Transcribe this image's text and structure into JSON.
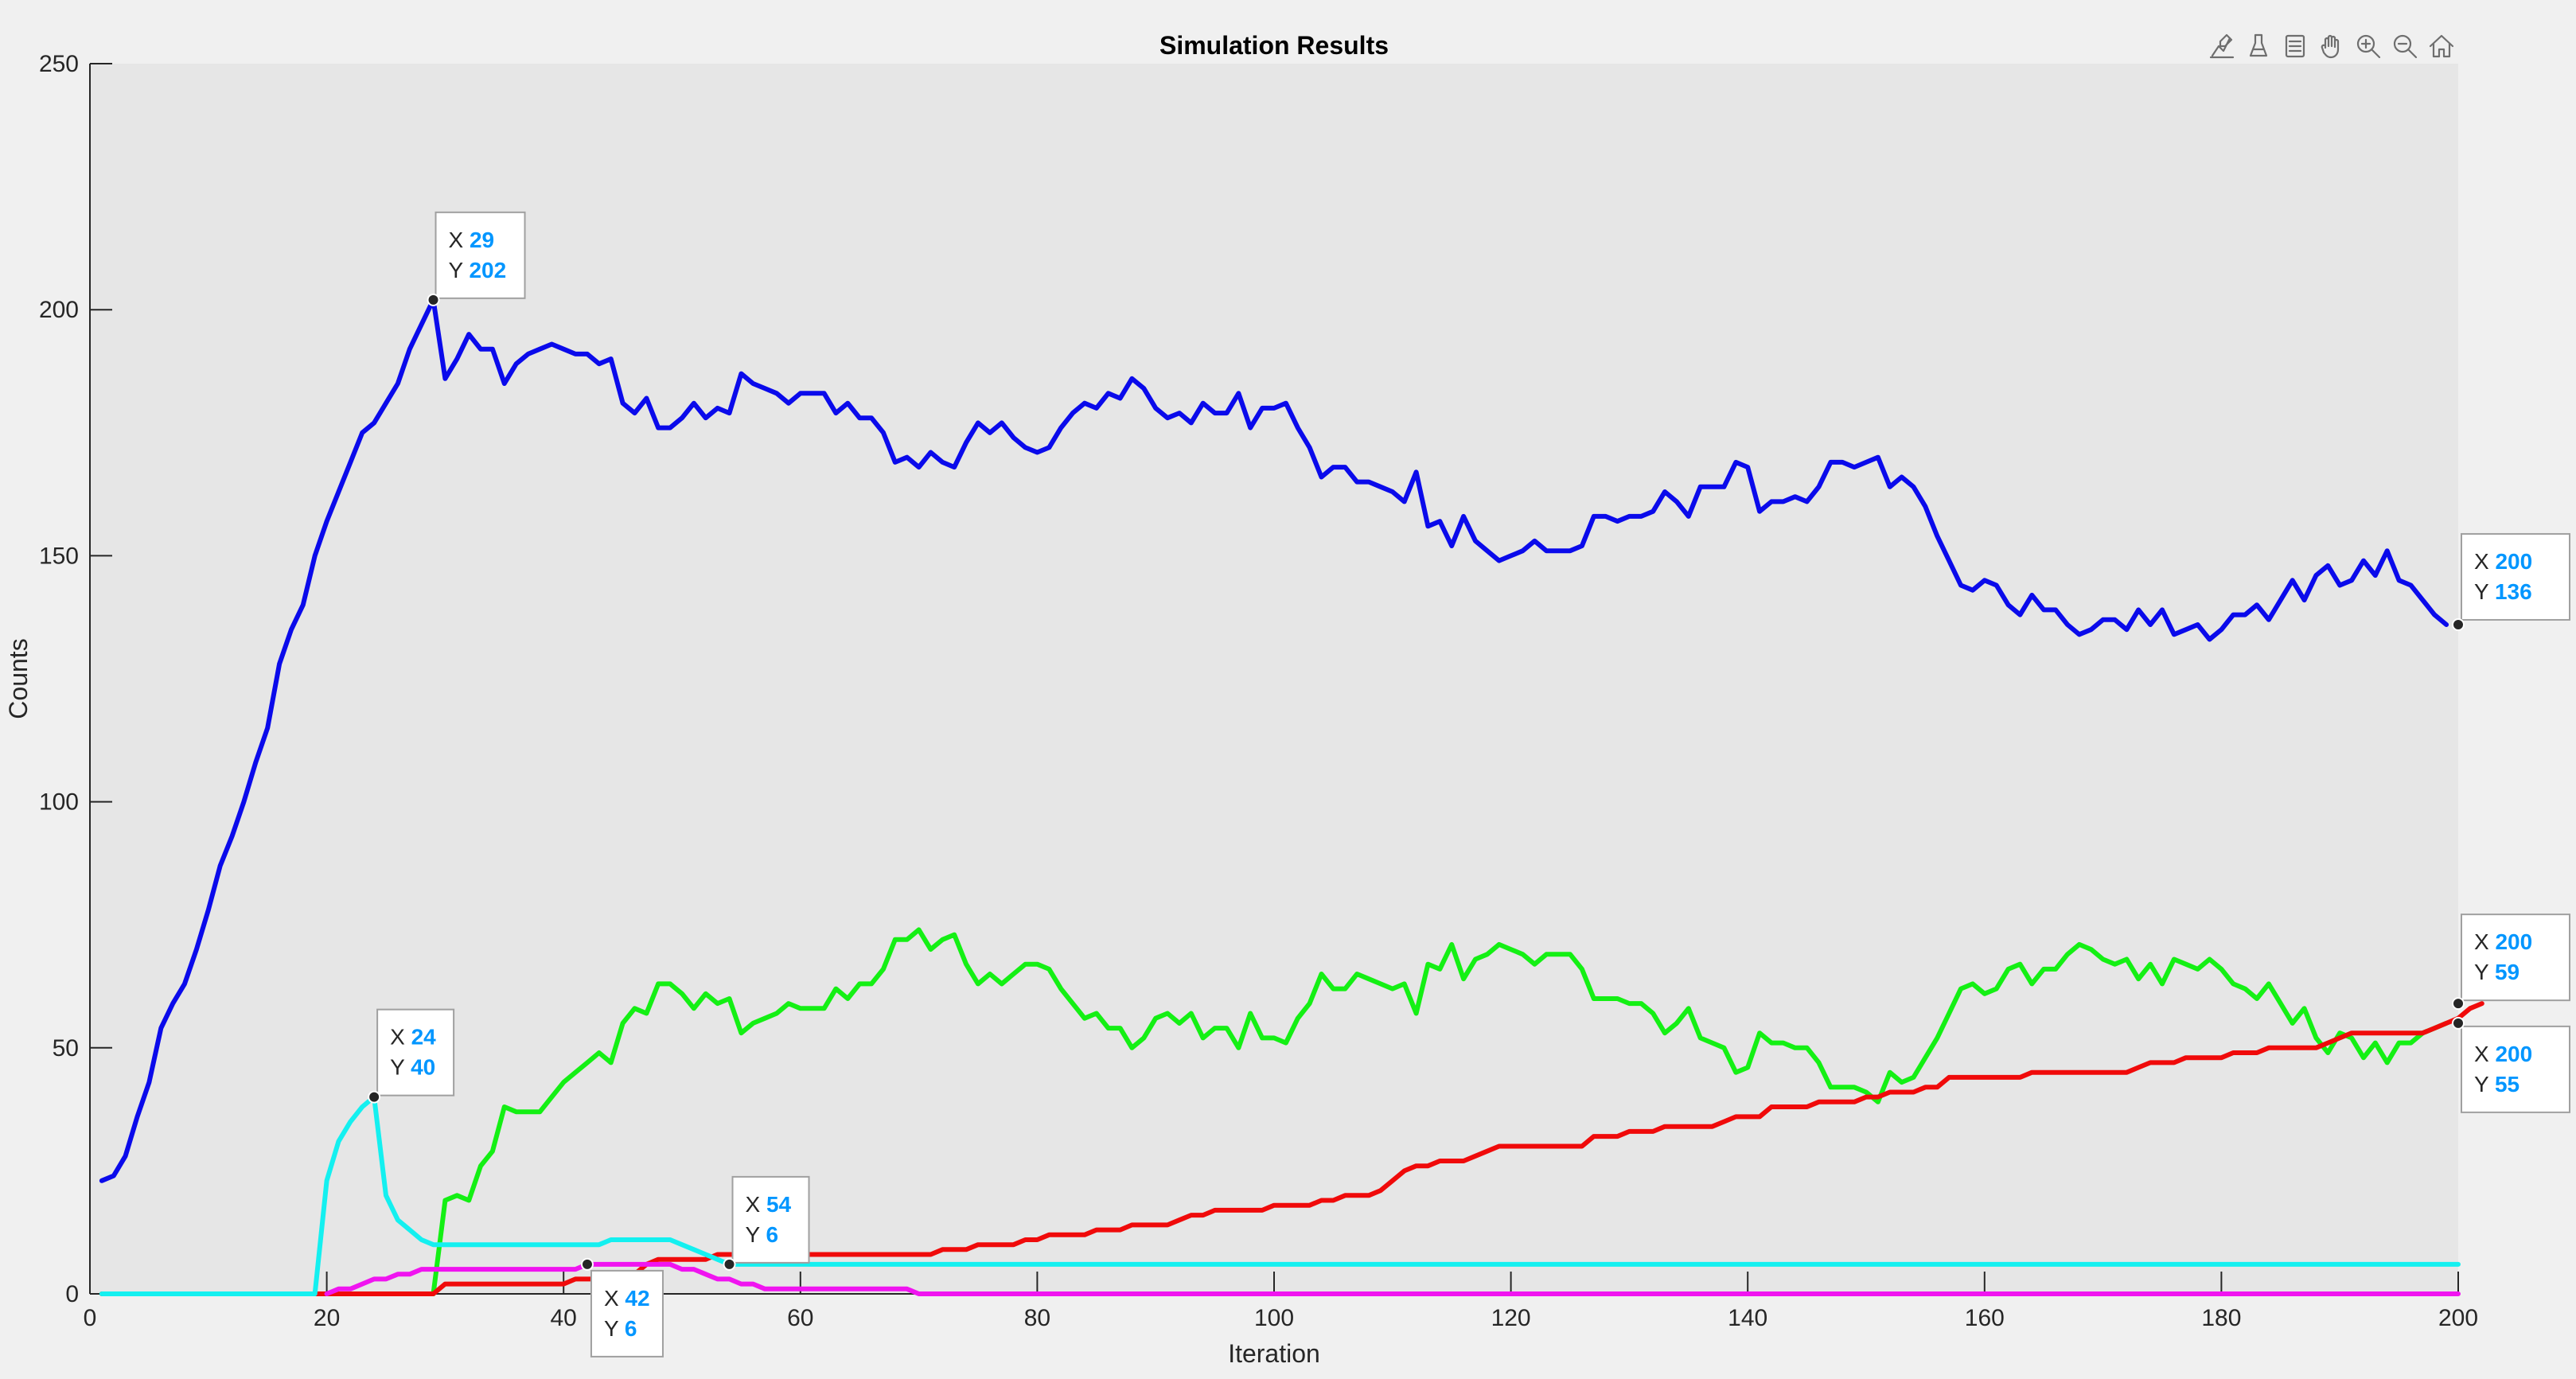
{
  "toolbar": {
    "icons": [
      "data-tips-icon",
      "brush-icon",
      "legend-icon",
      "pan-hand-icon",
      "zoom-in-icon",
      "zoom-out-icon",
      "home-icon"
    ]
  },
  "colors": {
    "figure_bg": "#f0f0f0",
    "axes_bg": "#e6e6e6",
    "axis": "#262626",
    "datatip_value": "#0096ff"
  },
  "chart_data": {
    "type": "line",
    "title": "Simulation Results",
    "xlabel": "Iteration",
    "ylabel": "Counts",
    "xlim": [
      0,
      200
    ],
    "ylim": [
      0,
      250
    ],
    "xticks": [
      "0",
      "20",
      "40",
      "60",
      "80",
      "100",
      "120",
      "140",
      "160",
      "180",
      "200"
    ],
    "yticks": [
      "0",
      "50",
      "100",
      "150",
      "200",
      "250"
    ],
    "grid": false,
    "series": [
      {
        "color": "#0a0aeb",
        "x_start": 1,
        "values": [
          23,
          24,
          28,
          36,
          43,
          54,
          59,
          63,
          70,
          78,
          87,
          93,
          100,
          108,
          115,
          128,
          135,
          140,
          150,
          157,
          163,
          169,
          175,
          177,
          181,
          185,
          192,
          197,
          202,
          186,
          190,
          195,
          192,
          192,
          185,
          189,
          191,
          192,
          193,
          192,
          191,
          191,
          189,
          190,
          181,
          179,
          182,
          176,
          176,
          178,
          181,
          178,
          180,
          179,
          187,
          185,
          184,
          183,
          181,
          183,
          183,
          183,
          179,
          181,
          178,
          178,
          175,
          169,
          170,
          168,
          171,
          169,
          168,
          173,
          177,
          175,
          177,
          174,
          172,
          171,
          172,
          176,
          179,
          181,
          180,
          183,
          182,
          186,
          184,
          180,
          178,
          179,
          177,
          181,
          179,
          179,
          183,
          176,
          180,
          180,
          181,
          176,
          172,
          166,
          168,
          168,
          165,
          165,
          164,
          163,
          161,
          167,
          156,
          157,
          152,
          158,
          153,
          151,
          149,
          150,
          151,
          153,
          151,
          151,
          151,
          152,
          158,
          158,
          157,
          158,
          158,
          159,
          163,
          161,
          158,
          164,
          164,
          164,
          169,
          168,
          159,
          161,
          161,
          162,
          161,
          164,
          169,
          169,
          168,
          169,
          170,
          164,
          166,
          164,
          160,
          154,
          149,
          144,
          143,
          145,
          144,
          140,
          138,
          142,
          139,
          139,
          136,
          134,
          135,
          137,
          137,
          135,
          139,
          136,
          139,
          134,
          135,
          136,
          133,
          135,
          138,
          138,
          140,
          137,
          141,
          145,
          141,
          146,
          148,
          144,
          145,
          149,
          146,
          151,
          145,
          144,
          141,
          138,
          136
        ]
      },
      {
        "color": "#14f014",
        "x_start": 1,
        "values": [
          0,
          0,
          0,
          0,
          0,
          0,
          0,
          0,
          0,
          0,
          0,
          0,
          0,
          0,
          0,
          0,
          0,
          0,
          0,
          0,
          0,
          0,
          0,
          0,
          0,
          0,
          0,
          0,
          0,
          19,
          20,
          19,
          26,
          29,
          38,
          37,
          37,
          37,
          40,
          43,
          45,
          47,
          49,
          47,
          55,
          58,
          57,
          63,
          63,
          61,
          58,
          61,
          59,
          60,
          53,
          55,
          56,
          57,
          59,
          58,
          58,
          58,
          62,
          60,
          63,
          63,
          66,
          72,
          72,
          74,
          70,
          72,
          73,
          67,
          63,
          65,
          63,
          65,
          67,
          67,
          66,
          62,
          59,
          56,
          57,
          54,
          54,
          50,
          52,
          56,
          57,
          55,
          57,
          52,
          54,
          54,
          50,
          57,
          52,
          52,
          51,
          56,
          59,
          65,
          62,
          62,
          65,
          64,
          63,
          62,
          63,
          57,
          67,
          66,
          71,
          64,
          68,
          69,
          71,
          70,
          69,
          67,
          69,
          69,
          69,
          66,
          60,
          60,
          60,
          59,
          59,
          57,
          53,
          55,
          58,
          52,
          51,
          50,
          45,
          46,
          53,
          51,
          51,
          50,
          50,
          47,
          42,
          42,
          42,
          41,
          39,
          45,
          43,
          44,
          48,
          52,
          57,
          62,
          63,
          61,
          62,
          66,
          67,
          63,
          66,
          66,
          69,
          71,
          70,
          68,
          67,
          68,
          64,
          67,
          63,
          68,
          67,
          66,
          68,
          66,
          63,
          62,
          60,
          63,
          59,
          55,
          58,
          52,
          49,
          53,
          52,
          48,
          51,
          47,
          51,
          51,
          53,
          54,
          55
        ]
      },
      {
        "color": "#f00a0a",
        "x_start": 1,
        "values": [
          0,
          0,
          0,
          0,
          0,
          0,
          0,
          0,
          0,
          0,
          0,
          0,
          0,
          0,
          0,
          0,
          0,
          0,
          0,
          0,
          0,
          0,
          0,
          0,
          0,
          0,
          0,
          0,
          0,
          2,
          2,
          2,
          2,
          2,
          2,
          2,
          2,
          2,
          2,
          2,
          3,
          3,
          3,
          3,
          3,
          4,
          6,
          7,
          7,
          7,
          7,
          7,
          8,
          8,
          8,
          8,
          8,
          8,
          8,
          8,
          8,
          8,
          8,
          8,
          8,
          8,
          8,
          8,
          8,
          8,
          8,
          9,
          9,
          9,
          10,
          10,
          10,
          10,
          11,
          11,
          12,
          12,
          12,
          12,
          13,
          13,
          13,
          14,
          14,
          14,
          14,
          15,
          16,
          16,
          17,
          17,
          17,
          17,
          17,
          18,
          18,
          18,
          18,
          19,
          19,
          20,
          20,
          20,
          21,
          23,
          25,
          26,
          26,
          27,
          27,
          27,
          28,
          29,
          30,
          30,
          30,
          30,
          30,
          30,
          30,
          30,
          32,
          32,
          32,
          33,
          33,
          33,
          34,
          34,
          34,
          34,
          34,
          35,
          36,
          36,
          36,
          38,
          38,
          38,
          38,
          39,
          39,
          39,
          39,
          40,
          40,
          41,
          41,
          41,
          42,
          42,
          44,
          44,
          44,
          44,
          44,
          44,
          44,
          45,
          45,
          45,
          45,
          45,
          45,
          45,
          45,
          45,
          46,
          47,
          47,
          47,
          48,
          48,
          48,
          48,
          49,
          49,
          49,
          50,
          50,
          50,
          50,
          50,
          51,
          52,
          53,
          53,
          53,
          53,
          53,
          53,
          53,
          54,
          55,
          56,
          58,
          59
        ]
      },
      {
        "color": "#14f0f0",
        "x_start": 1,
        "values": [
          0,
          0,
          0,
          0,
          0,
          0,
          0,
          0,
          0,
          0,
          0,
          0,
          0,
          0,
          0,
          0,
          0,
          0,
          0,
          23,
          31,
          35,
          38,
          40,
          20,
          15,
          13,
          11,
          10,
          10,
          10,
          10,
          10,
          10,
          10,
          10,
          10,
          10,
          10,
          10,
          10,
          10,
          10,
          11,
          11,
          11,
          11,
          11,
          11,
          10,
          9,
          8,
          7,
          6,
          6,
          6,
          6,
          6,
          6,
          6,
          6,
          6,
          6,
          6,
          6,
          6,
          6,
          6,
          6,
          6,
          6,
          6,
          6,
          6,
          6,
          6,
          6,
          6,
          6,
          6,
          6,
          6,
          6,
          6,
          6,
          6,
          6,
          6,
          6,
          6,
          6,
          6,
          6,
          6,
          6,
          6,
          6,
          6,
          6,
          6,
          6,
          6,
          6,
          6,
          6,
          6,
          6,
          6,
          6,
          6,
          6,
          6,
          6,
          6,
          6,
          6,
          6,
          6,
          6,
          6,
          6,
          6,
          6,
          6,
          6,
          6,
          6,
          6,
          6,
          6,
          6,
          6,
          6,
          6,
          6,
          6,
          6,
          6,
          6,
          6,
          6,
          6,
          6,
          6,
          6,
          6,
          6,
          6,
          6,
          6,
          6,
          6,
          6,
          6,
          6,
          6,
          6,
          6,
          6,
          6,
          6,
          6,
          6,
          6,
          6,
          6,
          6,
          6,
          6,
          6,
          6,
          6,
          6,
          6,
          6,
          6,
          6,
          6,
          6,
          6,
          6,
          6,
          6,
          6,
          6,
          6,
          6,
          6,
          6,
          6,
          6,
          6,
          6,
          6,
          6,
          6,
          6,
          6,
          6,
          6
        ]
      },
      {
        "color": "#f014f0",
        "x_start": 20,
        "values": [
          0,
          1,
          1,
          2,
          3,
          3,
          4,
          4,
          5,
          5,
          5,
          5,
          5,
          5,
          5,
          5,
          5,
          5,
          5,
          5,
          5,
          5,
          6,
          6,
          6,
          6,
          6,
          6,
          6,
          6,
          5,
          5,
          4,
          3,
          3,
          2,
          2,
          1,
          1,
          1,
          1,
          1,
          1,
          1,
          1,
          1,
          1,
          1,
          1,
          1,
          0,
          0,
          0,
          0,
          0,
          0,
          0,
          0,
          0,
          0,
          0,
          0,
          0,
          0,
          0,
          0,
          0,
          0,
          0,
          0,
          0,
          0,
          0,
          0,
          0,
          0,
          0,
          0,
          0,
          0,
          0,
          0,
          0,
          0,
          0,
          0,
          0,
          0,
          0,
          0,
          0,
          0,
          0,
          0,
          0,
          0,
          0,
          0,
          0,
          0,
          0,
          0,
          0,
          0,
          0,
          0,
          0,
          0,
          0,
          0,
          0,
          0,
          0,
          0,
          0,
          0,
          0,
          0,
          0,
          0,
          0,
          0,
          0,
          0,
          0,
          0,
          0,
          0,
          0,
          0,
          0,
          0,
          0,
          0,
          0,
          0,
          0,
          0,
          0,
          0,
          0,
          0,
          0,
          0,
          0,
          0,
          0,
          0,
          0,
          0,
          0,
          0,
          0,
          0,
          0,
          0,
          0,
          0,
          0,
          0,
          0,
          0,
          0,
          0,
          0,
          0,
          0,
          0,
          0,
          0,
          0,
          0,
          0,
          0,
          0,
          0,
          0,
          0,
          0,
          0,
          0
        ]
      }
    ],
    "datatips": [
      {
        "x": 29,
        "y": 202,
        "x_label": "29",
        "y_label": "202"
      },
      {
        "x": 200,
        "y": 136,
        "x_label": "200",
        "y_label": "136"
      },
      {
        "x": 24,
        "y": 40,
        "x_label": "24",
        "y_label": "40"
      },
      {
        "x": 54,
        "y": 6,
        "x_label": "54",
        "y_label": "6"
      },
      {
        "x": 42,
        "y": 6,
        "x_label": "42",
        "y_label": "6"
      },
      {
        "x": 200,
        "y": 59,
        "x_label": "200",
        "y_label": "59"
      },
      {
        "x": 200,
        "y": 55,
        "x_label": "200",
        "y_label": "55"
      }
    ],
    "datatip_prefix_x": "X",
    "datatip_prefix_y": "Y"
  }
}
